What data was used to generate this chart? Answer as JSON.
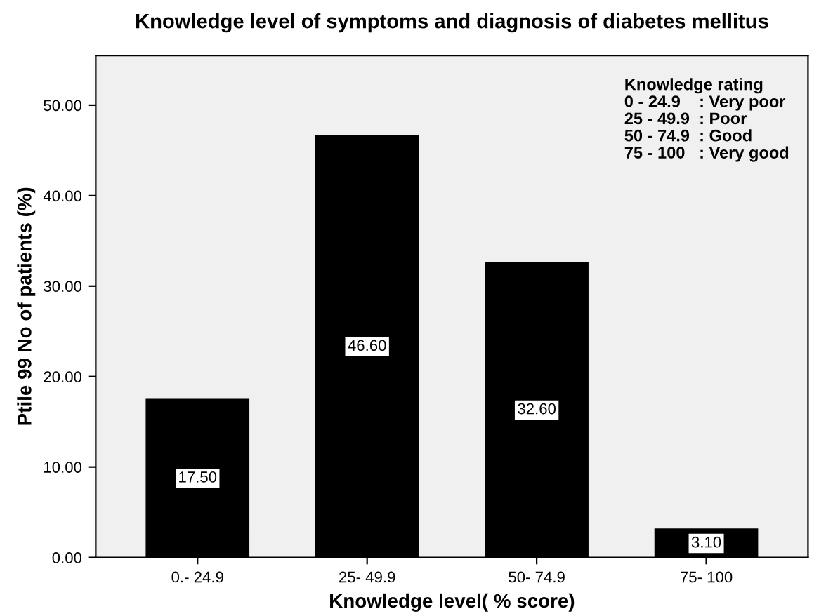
{
  "chart_data": {
    "type": "bar",
    "title": "Knowledge level of symptoms and diagnosis of diabetes mellitus",
    "xlabel": "Knowledge level( % score)",
    "ylabel": "Ptile 99 No of patients (%)",
    "categories": [
      "0.- 24.9",
      "25- 49.9",
      "50- 74.9",
      "75- 100"
    ],
    "values": [
      17.5,
      46.6,
      32.6,
      3.1
    ],
    "value_labels": [
      "17.50",
      "46.60",
      "32.60",
      "3.10"
    ],
    "color": "#000000",
    "ylim": [
      0,
      55.5
    ],
    "yticks": [
      {
        "value": 0,
        "label": "0.00"
      },
      {
        "value": 10,
        "label": "10.00"
      },
      {
        "value": 20,
        "label": "20.00"
      },
      {
        "value": 30,
        "label": "30.00"
      },
      {
        "value": 40,
        "label": "40.00"
      },
      {
        "value": 50,
        "label": "50.00"
      }
    ],
    "annotations": [
      "Knowledge rating",
      "0 - 24.9    : Very poor",
      "25 - 49.9  : Poor",
      "50 - 74.9  : Good",
      "75 - 100   : Very good"
    ],
    "grid": false,
    "legend": false
  }
}
